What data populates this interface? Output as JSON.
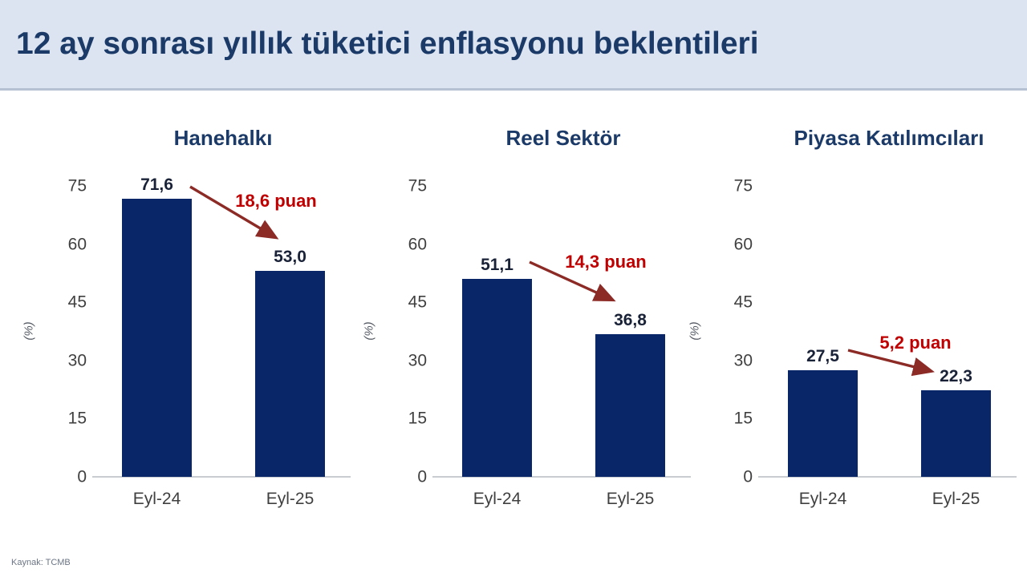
{
  "header": {
    "title": "12 ay sonrası yıllık tüketici enflasyonu beklentileri"
  },
  "footer": {
    "source": "Kaynak: TCMB"
  },
  "colors": {
    "header_bg": "#dbe4f0",
    "title_text": "#1b3a68",
    "bar": "#082668",
    "tick_text": "#404040",
    "value_text": "#1a2238",
    "arrow": "#8c2a26",
    "annotation_text": "#c00000",
    "axis_line": "#c9cdd2",
    "source_text": "#6b7585"
  },
  "chart_data": [
    {
      "type": "bar",
      "title": "Hanehalkı",
      "categories": [
        "Eyl-24",
        "Eyl-25"
      ],
      "values": [
        71.6,
        53.0
      ],
      "value_labels": [
        "71,6",
        "53,0"
      ],
      "change_annotation": "18,6 puan",
      "ylabel": "(%)",
      "yticks": [
        0,
        15,
        30,
        45,
        60,
        75
      ],
      "ylim": [
        0,
        75
      ],
      "grid": false,
      "legend": false
    },
    {
      "type": "bar",
      "title": "Reel Sektör",
      "categories": [
        "Eyl-24",
        "Eyl-25"
      ],
      "values": [
        51.1,
        36.8
      ],
      "value_labels": [
        "51,1",
        "36,8"
      ],
      "change_annotation": "14,3 puan",
      "ylabel": "(%)",
      "yticks": [
        0,
        15,
        30,
        45,
        60,
        75
      ],
      "ylim": [
        0,
        75
      ],
      "grid": false,
      "legend": false
    },
    {
      "type": "bar",
      "title": "Piyasa Katılımcıları",
      "categories": [
        "Eyl-24",
        "Eyl-25"
      ],
      "values": [
        27.5,
        22.3
      ],
      "value_labels": [
        "27,5",
        "22,3"
      ],
      "change_annotation": "5,2 puan",
      "ylabel": "(%)",
      "yticks": [
        0,
        15,
        30,
        45,
        60,
        75
      ],
      "ylim": [
        0,
        75
      ],
      "grid": false,
      "legend": false
    }
  ]
}
